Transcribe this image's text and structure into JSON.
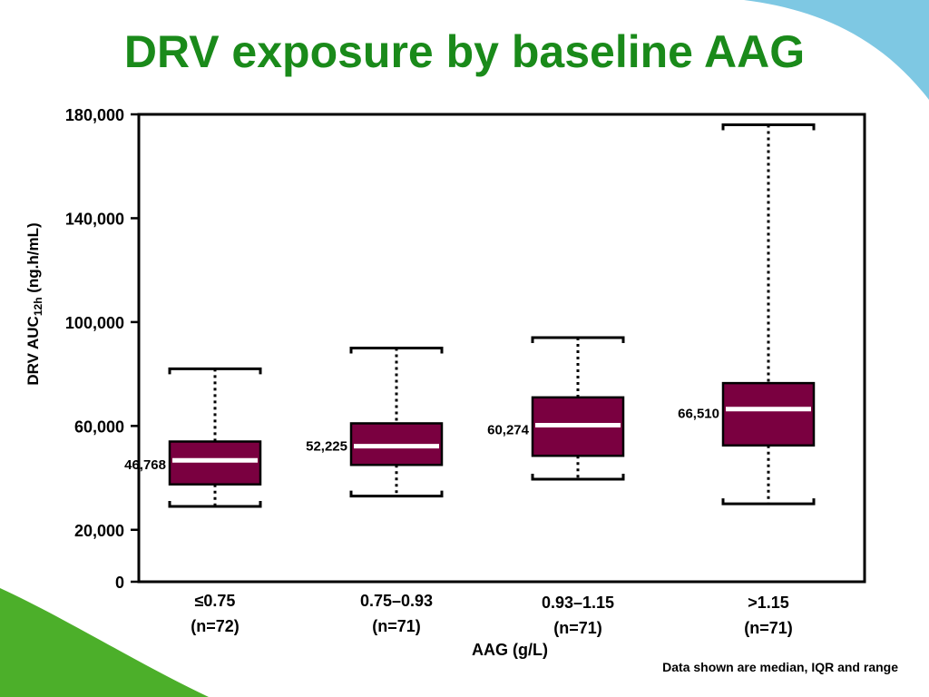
{
  "slide": {
    "title": "DRV exposure by baseline AAG",
    "footnote": "Data shown are median, IQR and range"
  },
  "colors": {
    "title": "#1a8a1a",
    "box_fill": "#7a0040",
    "median_line": "#ffffff",
    "deco_green": "#4caf2a",
    "deco_blue": "#7ec8e3"
  },
  "chart_data": {
    "type": "boxplot",
    "title": "DRV exposure by baseline AAG",
    "xlabel": "AAG (g/L)",
    "ylabel": "DRV AUC",
    "ylabel_subscript": "12h",
    "ylabel_unit": "(ng.h/mL)",
    "ylim": [
      0,
      180000
    ],
    "yticks": [
      0,
      20000,
      60000,
      100000,
      140000,
      180000
    ],
    "ytick_labels": [
      "0",
      "20,000",
      "60,000",
      "100,000",
      "140,000",
      "180,000"
    ],
    "categories": [
      {
        "label": "≤0.75",
        "n": "(n=72)"
      },
      {
        "label": "0.75–0.93",
        "n": "(n=71)"
      },
      {
        "label": "0.93–1.15",
        "n": "(n=71)"
      },
      {
        "label": ">1.15",
        "n": "(n=71)"
      }
    ],
    "boxes": [
      {
        "min": 29000,
        "q1": 37500,
        "median": 46768,
        "q3": 54000,
        "max": 82000,
        "median_label": "46,768"
      },
      {
        "min": 33000,
        "q1": 45000,
        "median": 52225,
        "q3": 61000,
        "max": 90000,
        "median_label": "52,225"
      },
      {
        "min": 39500,
        "q1": 48500,
        "median": 60274,
        "q3": 71000,
        "max": 94000,
        "median_label": "60,274"
      },
      {
        "min": 30000,
        "q1": 52500,
        "median": 66510,
        "q3": 76500,
        "max": 176000,
        "median_label": "66,510"
      }
    ],
    "grid": false,
    "legend": "none"
  }
}
